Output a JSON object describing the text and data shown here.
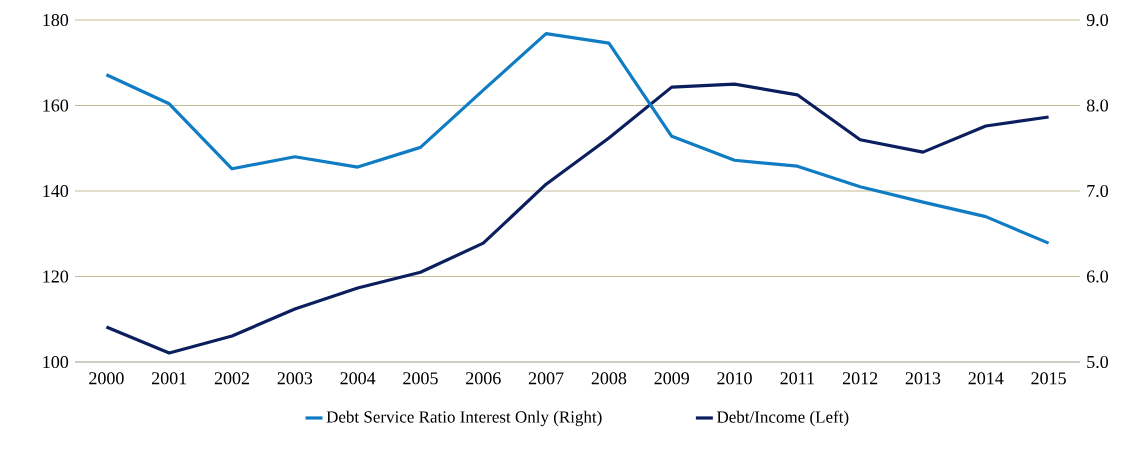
{
  "chart_data": {
    "type": "line",
    "categories": [
      "2000",
      "2001",
      "2002",
      "2003",
      "2004",
      "2005",
      "2006",
      "2007",
      "2008",
      "2009",
      "2010",
      "2011",
      "2012",
      "2013",
      "2014",
      "2015"
    ],
    "ylim": [
      100,
      180
    ],
    "yticks": [
      100,
      120,
      140,
      160,
      180
    ],
    "y2lim": [
      5,
      9
    ],
    "y2ticks": [
      {
        "value": 5,
        "label": "5.0"
      },
      {
        "value": 6,
        "label": "6.0"
      },
      {
        "value": 7,
        "label": "7.0"
      },
      {
        "value": 8,
        "label": "8.0"
      },
      {
        "value": 9,
        "label": "9.0"
      }
    ],
    "grid": "y",
    "legend": "bottom",
    "marker": "none",
    "line_style": "solid",
    "series": [
      {
        "name": "Debt Service Ratio Interest Only (Right)",
        "color": "#0f7cc4",
        "axis": "y2",
        "values": [
          8.36,
          8.02,
          7.26,
          7.4,
          7.28,
          7.51,
          8.18,
          8.84,
          8.73,
          7.64,
          7.36,
          7.29,
          7.05,
          6.87,
          6.7,
          6.39
        ]
      },
      {
        "name": "Debt/Income (Left)",
        "color": "#0b1f5e",
        "axis": "y",
        "values": [
          108.2,
          102.1,
          106.1,
          112.4,
          117.3,
          121,
          127.8,
          141.6,
          152.4,
          164.3,
          165,
          162.5,
          152,
          149.1,
          155.2,
          157.3
        ]
      }
    ]
  }
}
